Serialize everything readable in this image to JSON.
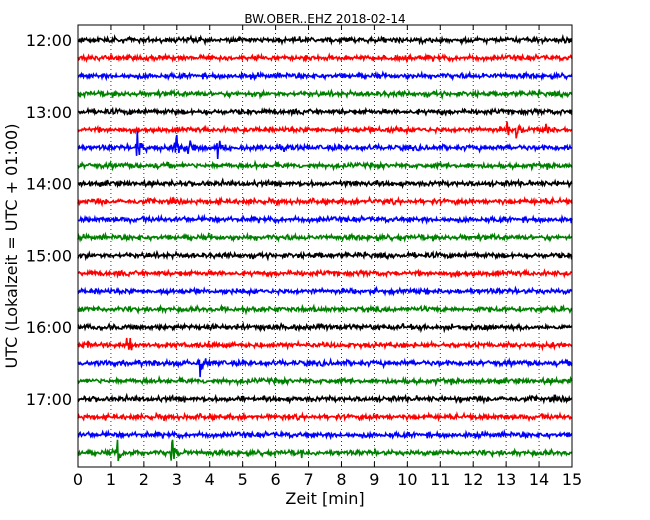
{
  "chart_data": {
    "type": "line",
    "title": "BW.OBER..EHZ 2018-02-14",
    "xlabel": "Zeit  [min]",
    "ylabel": "UTC (Lokalzeit = UTC + 01:00)",
    "xlim": [
      0,
      15
    ],
    "x_ticks": [
      "0",
      "1",
      "2",
      "3",
      "4",
      "5",
      "6",
      "7",
      "8",
      "9",
      "10",
      "11",
      "12",
      "13",
      "14",
      "15"
    ],
    "y_ticks": [
      {
        "label": "12:00",
        "trace_index": 0
      },
      {
        "label": "13:00",
        "trace_index": 4
      },
      {
        "label": "14:00",
        "trace_index": 8
      },
      {
        "label": "15:00",
        "trace_index": 12
      },
      {
        "label": "16:00",
        "trace_index": 16
      },
      {
        "label": "17:00",
        "trace_index": 20
      }
    ],
    "vertical_gridlines": "dotted at every minute",
    "color_cycle": [
      "#000000",
      "#ff0000",
      "#0000ff",
      "#008000"
    ],
    "series": [
      {
        "start": "12:00",
        "color": "#000000",
        "events": []
      },
      {
        "start": "12:15",
        "color": "#ff0000",
        "events": []
      },
      {
        "start": "12:30",
        "color": "#0000ff",
        "events": []
      },
      {
        "start": "12:45",
        "color": "#008000",
        "events": []
      },
      {
        "start": "13:00",
        "color": "#000000",
        "events": []
      },
      {
        "start": "13:15",
        "color": "#ff0000",
        "events": [
          {
            "t": 13.0,
            "amp": 0.9
          },
          {
            "t": 13.3,
            "amp": 0.7
          },
          {
            "t": 14.2,
            "amp": 0.9
          },
          {
            "t": 9.1,
            "amp": 0.4
          }
        ]
      },
      {
        "start": "13:30",
        "color": "#0000ff",
        "events": [
          {
            "t": 1.8,
            "amp": 2.0
          },
          {
            "t": 2.95,
            "amp": 1.8
          },
          {
            "t": 3.3,
            "amp": 1.6
          },
          {
            "t": 4.2,
            "amp": 1.5
          }
        ]
      },
      {
        "start": "13:45",
        "color": "#008000",
        "events": []
      },
      {
        "start": "14:00",
        "color": "#000000",
        "events": []
      },
      {
        "start": "14:15",
        "color": "#ff0000",
        "events": [
          {
            "t": 8.8,
            "amp": 0.5
          }
        ]
      },
      {
        "start": "14:30",
        "color": "#0000ff",
        "events": []
      },
      {
        "start": "14:45",
        "color": "#008000",
        "events": []
      },
      {
        "start": "15:00",
        "color": "#000000",
        "events": []
      },
      {
        "start": "15:15",
        "color": "#ff0000",
        "events": []
      },
      {
        "start": "15:30",
        "color": "#0000ff",
        "events": []
      },
      {
        "start": "15:45",
        "color": "#008000",
        "events": []
      },
      {
        "start": "16:00",
        "color": "#000000",
        "events": []
      },
      {
        "start": "16:15",
        "color": "#ff0000",
        "events": [
          {
            "t": 1.5,
            "amp": 1.6
          }
        ]
      },
      {
        "start": "16:30",
        "color": "#0000ff",
        "events": [
          {
            "t": 3.7,
            "amp": 1.3
          },
          {
            "t": 2.9,
            "amp": 0.5
          }
        ]
      },
      {
        "start": "16:45",
        "color": "#008000",
        "events": []
      },
      {
        "start": "17:00",
        "color": "#000000",
        "events": [
          {
            "t": 4.9,
            "amp": 0.4
          }
        ]
      },
      {
        "start": "17:15",
        "color": "#ff0000",
        "events": []
      },
      {
        "start": "17:30",
        "color": "#0000ff",
        "events": []
      },
      {
        "start": "17:45",
        "color": "#008000",
        "events": [
          {
            "t": 1.2,
            "amp": 1.2
          },
          {
            "t": 2.85,
            "amp": 1.4
          },
          {
            "t": 6.8,
            "amp": 0.5
          }
        ]
      }
    ]
  }
}
